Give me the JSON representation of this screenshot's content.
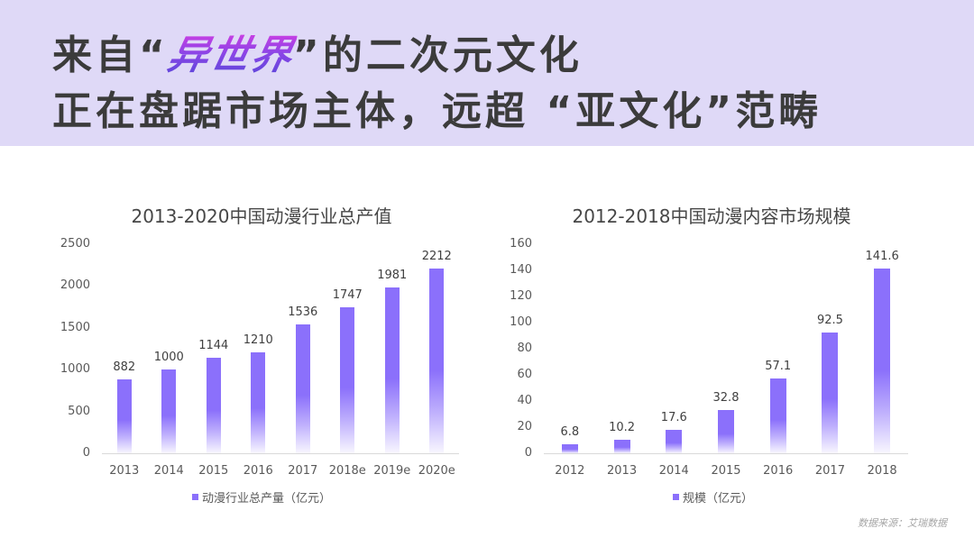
{
  "header": {
    "line1_prefix": "来自",
    "line1_open_quote": "“",
    "line1_highlight": "异世界",
    "line1_close_quote": "”",
    "line1_suffix": "的二次元文化",
    "line2": "正在盘踞市场主体，远超 “亚文化”范畴",
    "background_color": "#dfd9f7",
    "highlight_gradient": [
      "#cf3ee3",
      "#5646d9"
    ]
  },
  "colors": {
    "bar": "#8b70fb",
    "bar_fade": "#ffffff"
  },
  "chart_data": [
    {
      "type": "bar",
      "title": "2013-2020中国动漫行业总产值",
      "categories": [
        "2013",
        "2014",
        "2015",
        "2016",
        "2017",
        "2018e",
        "2019e",
        "2020e"
      ],
      "values": [
        882,
        1000,
        1144,
        1210,
        1536,
        1747,
        1981,
        2212
      ],
      "series": [
        {
          "name": "动漫行业总产量（亿元）",
          "values": [
            882,
            1000,
            1144,
            1210,
            1536,
            1747,
            1981,
            2212
          ]
        }
      ],
      "legend": [
        "动漫行业总产量（亿元）"
      ],
      "legend_position": "bottom",
      "xlabel": "",
      "ylabel": "",
      "ylim": [
        0,
        2500
      ],
      "yticks": [
        0,
        500,
        1000,
        1500,
        2000,
        2500
      ],
      "grid": false,
      "data_labels": true
    },
    {
      "type": "bar",
      "title": "2012-2018中国动漫内容市场规模",
      "categories": [
        "2012",
        "2013",
        "2014",
        "2015",
        "2016",
        "2017",
        "2018"
      ],
      "values": [
        6.8,
        10.2,
        17.6,
        32.8,
        57.1,
        92.5,
        141.6
      ],
      "series": [
        {
          "name": "规模（亿元）",
          "values": [
            6.8,
            10.2,
            17.6,
            32.8,
            57.1,
            92.5,
            141.6
          ]
        }
      ],
      "legend": [
        "规模（亿元）"
      ],
      "legend_position": "bottom",
      "xlabel": "",
      "ylabel": "",
      "ylim": [
        0,
        160
      ],
      "yticks": [
        0,
        20,
        40,
        60,
        80,
        100,
        120,
        140,
        160
      ],
      "grid": false,
      "data_labels": true
    }
  ],
  "source": "数据来源：艾瑞数据"
}
